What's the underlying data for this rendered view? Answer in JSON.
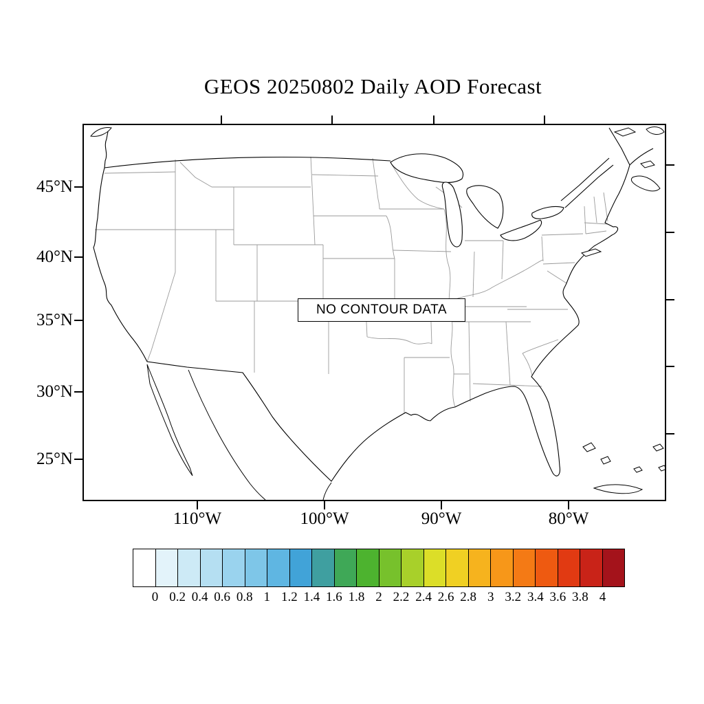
{
  "title": "GEOS 20250802 Daily AOD Forecast",
  "map": {
    "annotation": "NO CONTOUR DATA",
    "lat_ticks": [
      {
        "label": "45°N"
      },
      {
        "label": "40°N"
      },
      {
        "label": "35°N"
      },
      {
        "label": "30°N"
      },
      {
        "label": "25°N"
      }
    ],
    "lon_ticks": [
      {
        "label": "110°W"
      },
      {
        "label": "100°W"
      },
      {
        "label": "90°W"
      },
      {
        "label": "80°W"
      }
    ]
  },
  "colorbar": {
    "labels": [
      "0",
      "0.2",
      "0.4",
      "0.6",
      "0.8",
      "1",
      "1.2",
      "1.4",
      "1.6",
      "1.8",
      "2",
      "2.2",
      "2.4",
      "2.6",
      "2.8",
      "3",
      "3.2",
      "3.4",
      "3.6",
      "3.8",
      "4"
    ],
    "colors": [
      "#ffffff",
      "#e3f3fa",
      "#cdeaf6",
      "#b5dff2",
      "#9ad3ee",
      "#7ec6e8",
      "#5fb6e2",
      "#41a3d8",
      "#3f9fa0",
      "#3fa857",
      "#4db32f",
      "#77c12c",
      "#a8d02a",
      "#dcde28",
      "#f0d023",
      "#f6b31e",
      "#f79719",
      "#f47a15",
      "#ee5a11",
      "#e13a12",
      "#c92318",
      "#a4131b"
    ]
  }
}
